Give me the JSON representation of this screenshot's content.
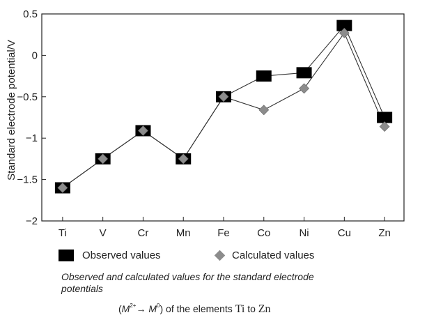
{
  "chart_data": {
    "type": "line",
    "categories": [
      "Ti",
      "V",
      "Cr",
      "Mn",
      "Fe",
      "Co",
      "Ni",
      "Cu",
      "Zn"
    ],
    "series": [
      {
        "name": "Observed values",
        "marker": "square",
        "color": "#000000",
        "values": [
          -1.6,
          -1.25,
          -0.91,
          -1.25,
          -0.5,
          -0.25,
          -0.21,
          0.36,
          -0.75
        ]
      },
      {
        "name": "Calculated values",
        "marker": "diamond",
        "color": "#8c8c8c",
        "values": [
          -1.6,
          -1.25,
          -0.91,
          -1.25,
          -0.5,
          -0.66,
          -0.4,
          0.27,
          -0.86
        ]
      }
    ],
    "ylabel": "Standard electrode potential/V",
    "xlabel": "",
    "ylim": [
      -2,
      0.5
    ],
    "yticks": [
      0.5,
      0,
      -0.5,
      -1,
      -1.5,
      -2
    ],
    "ytick_labels": [
      "0.5",
      "0",
      "−0.5",
      "−1",
      "−1.5",
      "−2"
    ],
    "grid": false
  },
  "legend": {
    "observed_label": "Observed values",
    "calculated_label": "Calculated values"
  },
  "caption": {
    "line1": "Observed and calculated values for the standard electrode potentials",
    "open_paren": "(",
    "m2": "M",
    "m2_sup": "2+",
    "arrow": "→",
    "m0": "M",
    "m0_sup": "0",
    "rest": ") of the elements ",
    "ti": "Ti",
    "to": " to ",
    "zn": "Zn"
  }
}
